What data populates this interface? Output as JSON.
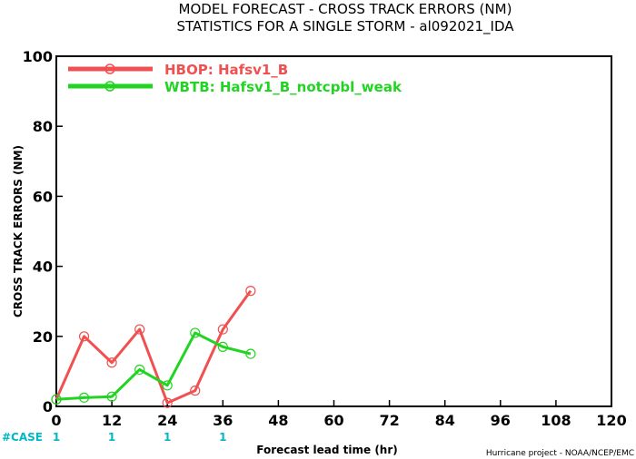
{
  "title_line1": "MODEL FORECAST - CROSS TRACK ERRORS (NM)",
  "title_line2": "STATISTICS FOR A SINGLE STORM - al092021_IDA",
  "case_label": "#CASE",
  "credit": "Hurricane project - NOAA/NCEP/EMC",
  "colors": {
    "case": "#00b8c8",
    "axis": "#000000"
  },
  "chart_data": {
    "type": "line",
    "xlabel": "Forecast lead time (hr)",
    "ylabel": "CROSS TRACK ERRORS (NM)",
    "xlim": [
      0,
      120
    ],
    "ylim": [
      0,
      100
    ],
    "x_ticks": [
      0,
      12,
      24,
      36,
      48,
      60,
      72,
      84,
      96,
      108,
      120
    ],
    "y_ticks": [
      0,
      20,
      40,
      60,
      80,
      100
    ],
    "grid": false,
    "legend_position": "top-left",
    "series": [
      {
        "name": "HBOP: Hafsv1_B",
        "color": "#f05050",
        "x": [
          0,
          6,
          12,
          18,
          24,
          30,
          36,
          42
        ],
        "y": [
          2,
          20,
          12.5,
          22,
          1,
          4.5,
          22,
          33
        ]
      },
      {
        "name": "WBTB: Hafsv1_B_notcpbl_weak",
        "color": "#22d422",
        "x": [
          0,
          6,
          12,
          18,
          24,
          30,
          36,
          42
        ],
        "y": [
          2,
          2.5,
          2.8,
          10.5,
          6,
          21,
          17,
          15
        ]
      }
    ],
    "cases": [
      {
        "x": 0,
        "count": "1"
      },
      {
        "x": 12,
        "count": "1"
      },
      {
        "x": 24,
        "count": "1"
      },
      {
        "x": 36,
        "count": "1"
      }
    ]
  }
}
